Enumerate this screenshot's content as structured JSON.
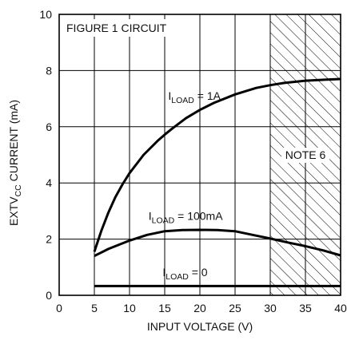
{
  "chart_data": {
    "type": "line",
    "xlabel": "INPUT VOLTAGE (V)",
    "ylabel": {
      "prefix": "EXTV",
      "subscript": "CC",
      "suffix": " CURRENT (mA)"
    },
    "xlim": [
      0,
      40
    ],
    "ylim": [
      0,
      10
    ],
    "x_ticks": [
      0,
      5,
      10,
      15,
      20,
      25,
      30,
      35,
      40
    ],
    "y_ticks": [
      0,
      2,
      4,
      6,
      8,
      10
    ],
    "grid": true,
    "hatched_region": {
      "x_start": 30,
      "x_end": 40,
      "label": "NOTE 6"
    },
    "inset_label": "FIGURE 1 CIRCUIT",
    "series": [
      {
        "label": {
          "prefix": "I",
          "subscript": "LOAD",
          "suffix": " = 1A"
        },
        "x": [
          5,
          6,
          7,
          8,
          9,
          10,
          12,
          14,
          15,
          16,
          18,
          20,
          22,
          25,
          28,
          30,
          32,
          35,
          38,
          40
        ],
        "y": [
          1.55,
          2.3,
          2.95,
          3.5,
          3.95,
          4.35,
          5.0,
          5.5,
          5.72,
          5.92,
          6.3,
          6.6,
          6.85,
          7.15,
          7.38,
          7.48,
          7.56,
          7.64,
          7.68,
          7.7
        ]
      },
      {
        "label": {
          "prefix": "I",
          "subscript": "LOAD",
          "suffix": " = 100mA"
        },
        "x": [
          5,
          7,
          10,
          12.5,
          15,
          17.5,
          20,
          22.5,
          25,
          27.5,
          30,
          32.5,
          35,
          37.5,
          40
        ],
        "y": [
          1.4,
          1.65,
          1.95,
          2.15,
          2.28,
          2.32,
          2.33,
          2.32,
          2.28,
          2.15,
          2.02,
          1.88,
          1.75,
          1.6,
          1.42
        ]
      },
      {
        "label": {
          "prefix": "I",
          "subscript": "LOAD",
          "suffix": " = 0"
        },
        "x": [
          5,
          40
        ],
        "y": [
          0.33,
          0.33
        ]
      }
    ]
  }
}
